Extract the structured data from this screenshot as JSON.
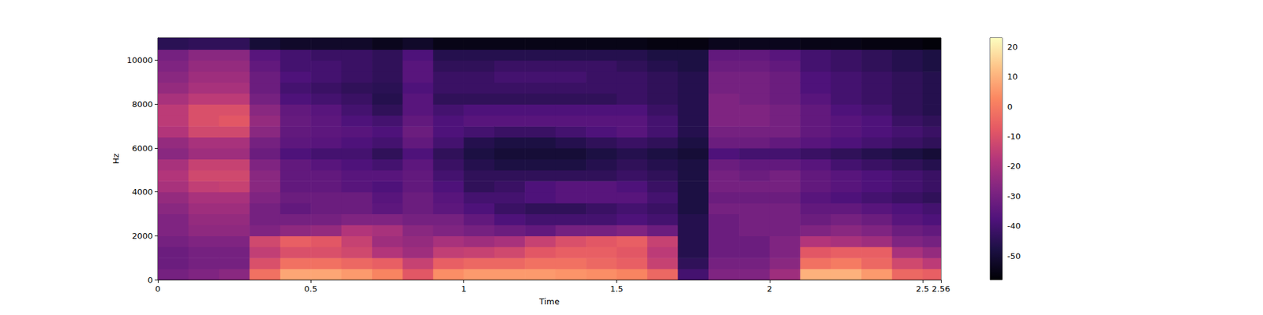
{
  "chart_data": {
    "type": "spectrogram",
    "x_label": "Time",
    "y_label": "Hz",
    "xlim": [
      0,
      2.56
    ],
    "xticks": [
      0,
      0.5,
      1,
      1.5,
      2,
      2.5
    ],
    "ylim": [
      0,
      11025
    ],
    "yticks": [
      0,
      2000,
      4000,
      6000,
      8000,
      10000
    ],
    "grid": false,
    "colorbar_range": [
      -58,
      23
    ],
    "colorbar_ticks": [
      -50,
      -40,
      -30,
      -20,
      -10,
      0,
      10,
      20
    ],
    "time_edges": [
      0,
      0.1,
      0.2,
      0.3,
      0.4,
      0.5,
      0.6,
      0.7,
      0.8,
      0.9,
      1.0,
      1.1,
      1.2,
      1.3,
      1.4,
      1.5,
      1.6,
      1.7,
      1.8,
      1.9,
      2.0,
      2.1,
      2.2,
      2.3,
      2.4,
      2.5,
      2.56
    ],
    "freq_edges": [
      0,
      500,
      1000,
      1500,
      2000,
      2500,
      3000,
      3500,
      4000,
      4500,
      5000,
      5500,
      6000,
      6500,
      7000,
      7500,
      8000,
      8500,
      9000,
      9500,
      10000,
      10500,
      11025
    ],
    "cells": [
      [
        -30,
        -32,
        -32,
        -30,
        -28,
        -28,
        -26,
        -24,
        -20,
        -18,
        -20,
        -26,
        -24,
        -18,
        -16,
        -16,
        -20,
        -24,
        -26,
        -28,
        -30,
        -45
      ],
      [
        -28,
        -30,
        -30,
        -28,
        -25,
        -24,
        -22,
        -20,
        -15,
        -12,
        -14,
        -22,
        -20,
        -12,
        -10,
        -10,
        -16,
        -20,
        -22,
        -24,
        -26,
        -44
      ],
      [
        -26,
        -30,
        -30,
        -28,
        -25,
        -24,
        -22,
        -20,
        -14,
        -12,
        -14,
        -22,
        -20,
        -12,
        -8,
        -10,
        -16,
        -20,
        -22,
        -24,
        -26,
        -44
      ],
      [
        -2,
        -10,
        -15,
        -12,
        -28,
        -30,
        -30,
        -28,
        -26,
        -26,
        -28,
        -32,
        -30,
        -26,
        -24,
        -26,
        -30,
        -32,
        -32,
        -34,
        -36,
        -50
      ],
      [
        8,
        -2,
        -10,
        -6,
        -25,
        -30,
        -34,
        -32,
        -34,
        -34,
        -34,
        -38,
        -35,
        -34,
        -33,
        -34,
        -38,
        -40,
        -38,
        -40,
        -40,
        -52
      ],
      [
        8,
        -2,
        -10,
        -8,
        -24,
        -30,
        -32,
        -32,
        -34,
        -34,
        -36,
        -40,
        -36,
        -35,
        -35,
        -36,
        -40,
        -42,
        -40,
        -40,
        -42,
        -52
      ],
      [
        6,
        -4,
        -12,
        -14,
        -18,
        -28,
        -32,
        -32,
        -36,
        -36,
        -38,
        -40,
        -38,
        -36,
        -38,
        -40,
        -42,
        -44,
        -42,
        -42,
        -42,
        -52
      ],
      [
        2,
        -6,
        -18,
        -22,
        -20,
        -28,
        -35,
        -36,
        -38,
        -36,
        -40,
        -44,
        -40,
        -38,
        -40,
        -44,
        -46,
        -45,
        -44,
        -44,
        -44,
        -54
      ],
      [
        -8,
        -14,
        -22,
        -24,
        -26,
        -30,
        -32,
        -32,
        -34,
        -34,
        -35,
        -38,
        -34,
        -32,
        -34,
        -36,
        -36,
        -38,
        -36,
        -36,
        -38,
        -52
      ],
      [
        4,
        -6,
        -15,
        -20,
        -28,
        -30,
        -35,
        -36,
        -38,
        -40,
        -42,
        -44,
        -40,
        -38,
        -38,
        -40,
        -44,
        -42,
        -42,
        -44,
        -46,
        -55
      ],
      [
        6,
        -4,
        -14,
        -22,
        -30,
        -34,
        -38,
        -40,
        -44,
        -44,
        -46,
        -48,
        -46,
        -40,
        -36,
        -38,
        -44,
        -42,
        -42,
        -44,
        -46,
        -55
      ],
      [
        6,
        -4,
        -12,
        -20,
        -32,
        -38,
        -42,
        -40,
        -42,
        -44,
        -48,
        -50,
        -48,
        -42,
        -36,
        -38,
        -44,
        -42,
        -40,
        -42,
        -46,
        -55
      ],
      [
        6,
        -2,
        -8,
        -14,
        -34,
        -40,
        -44,
        -38,
        -38,
        -44,
        -48,
        -50,
        -48,
        -42,
        -36,
        -38,
        -44,
        -42,
        -40,
        -42,
        -46,
        -55
      ],
      [
        5,
        -2,
        -6,
        -10,
        -30,
        -40,
        -44,
        -36,
        -36,
        -44,
        -48,
        -50,
        -46,
        -40,
        -36,
        -38,
        -44,
        -42,
        -40,
        -42,
        -46,
        -55
      ],
      [
        4,
        -4,
        -6,
        -8,
        -30,
        -40,
        -42,
        -36,
        -36,
        -44,
        -46,
        -48,
        -44,
        -38,
        -36,
        -38,
        -44,
        -42,
        -42,
        -42,
        -46,
        -55
      ],
      [
        2,
        -6,
        -8,
        -6,
        -28,
        -38,
        -40,
        -36,
        -38,
        -42,
        -44,
        -46,
        -42,
        -36,
        -36,
        -38,
        -42,
        -42,
        -42,
        -44,
        -46,
        -55
      ],
      [
        -4,
        -14,
        -16,
        -14,
        -32,
        -40,
        -42,
        -40,
        -42,
        -44,
        -46,
        -48,
        -44,
        -40,
        -40,
        -42,
        -44,
        -44,
        -44,
        -46,
        -48,
        -56
      ],
      [
        -40,
        -44,
        -46,
        -46,
        -46,
        -46,
        -48,
        -48,
        -48,
        -48,
        -48,
        -50,
        -48,
        -46,
        -46,
        -46,
        -46,
        -46,
        -46,
        -48,
        -48,
        -56
      ],
      [
        -28,
        -30,
        -32,
        -32,
        -32,
        -32,
        -30,
        -32,
        -30,
        -30,
        -32,
        -38,
        -32,
        -30,
        -28,
        -28,
        -28,
        -30,
        -30,
        -32,
        -34,
        -54
      ],
      [
        -28,
        -30,
        -32,
        -32,
        -30,
        -30,
        -30,
        -32,
        -30,
        -32,
        -34,
        -40,
        -32,
        -30,
        -28,
        -28,
        -30,
        -30,
        -30,
        -32,
        -34,
        -54
      ],
      [
        -22,
        -26,
        -28,
        -28,
        -30,
        -30,
        -30,
        -32,
        -30,
        -30,
        -34,
        -40,
        -34,
        -30,
        -30,
        -30,
        -32,
        -32,
        -32,
        -34,
        -36,
        -54
      ],
      [
        10,
        -2,
        -8,
        -18,
        -28,
        -32,
        -34,
        -36,
        -34,
        -34,
        -36,
        -42,
        -36,
        -34,
        -34,
        -34,
        -36,
        -38,
        -38,
        -40,
        -40,
        -55
      ],
      [
        10,
        0,
        -6,
        -20,
        -26,
        -30,
        -34,
        -38,
        -36,
        -36,
        -40,
        -44,
        -38,
        -36,
        -36,
        -38,
        -40,
        -40,
        -40,
        -42,
        -42,
        -55
      ],
      [
        6,
        -4,
        -6,
        -22,
        -28,
        -32,
        -36,
        -40,
        -38,
        -38,
        -42,
        -46,
        -40,
        -38,
        -38,
        -40,
        -42,
        -42,
        -42,
        -44,
        -44,
        -56
      ],
      [
        -4,
        -12,
        -20,
        -28,
        -32,
        -36,
        -38,
        -42,
        -40,
        -40,
        -44,
        -48,
        -42,
        -40,
        -42,
        -44,
        -44,
        -44,
        -44,
        -46,
        -46,
        -56
      ],
      [
        -6,
        -16,
        -24,
        -30,
        -34,
        -38,
        -40,
        -44,
        -42,
        -42,
        -46,
        -50,
        -44,
        -42,
        -44,
        -46,
        -46,
        -46,
        -46,
        -48,
        -48,
        -57
      ]
    ]
  }
}
